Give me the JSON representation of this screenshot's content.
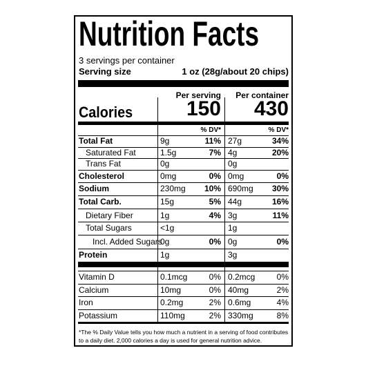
{
  "title": "Nutrition Facts",
  "servings": "3 servings per container",
  "serving_size": {
    "label": "Serving size",
    "value": "1 oz (28g/about 20 chips)"
  },
  "columns": [
    "Per serving",
    "Per container"
  ],
  "calories": {
    "label": "Calories",
    "per_serving": 150,
    "per_container": 430
  },
  "dv_header": [
    "% DV*",
    "% DV*"
  ],
  "nutrients": [
    {
      "label": "Total Fat",
      "per_serving": {
        "amount": "9g",
        "dv": "11%"
      },
      "per_container": {
        "amount": "27g",
        "dv": "34%"
      }
    },
    {
      "label": "Saturated Fat",
      "per_serving": {
        "amount": "1.5g",
        "dv": "7%"
      },
      "per_container": {
        "amount": "4g",
        "dv": "20%"
      }
    },
    {
      "label": "Trans Fat",
      "per_serving": {
        "amount": "0g"
      },
      "per_container": {
        "amount": "0g"
      }
    },
    {
      "label": "Cholesterol",
      "per_serving": {
        "amount": "0mg",
        "dv": "0%"
      },
      "per_container": {
        "amount": "0mg",
        "dv": "0%"
      }
    },
    {
      "label": "Sodium",
      "per_serving": {
        "amount": "230mg",
        "dv": "10%"
      },
      "per_container": {
        "amount": "690mg",
        "dv": "30%"
      }
    },
    {
      "label": "Total Carb.",
      "per_serving": {
        "amount": "15g",
        "dv": "5%"
      },
      "per_container": {
        "amount": "44g",
        "dv": "16%"
      }
    },
    {
      "label": "Dietary Fiber",
      "per_serving": {
        "amount": "1g",
        "dv": "4%"
      },
      "per_container": {
        "amount": "3g",
        "dv": "11%"
      }
    },
    {
      "label": "Total Sugars",
      "per_serving": {
        "amount": "<1g"
      },
      "per_container": {
        "amount": "1g"
      }
    },
    {
      "label": "Incl. Added Sugars",
      "per_serving": {
        "amount": "0g",
        "dv": "0%"
      },
      "per_container": {
        "amount": "0g",
        "dv": "0%"
      }
    },
    {
      "label": "Protein",
      "per_serving": {
        "amount": "1g"
      },
      "per_container": {
        "amount": "3g"
      }
    }
  ],
  "vitamins": [
    {
      "label": "Vitamin D",
      "per_serving": {
        "amount": "0.1mcg",
        "dv": "0%"
      },
      "per_container": {
        "amount": "0.2mcg",
        "dv": "0%"
      }
    },
    {
      "label": "Calcium",
      "per_serving": {
        "amount": "10mg",
        "dv": "0%"
      },
      "per_container": {
        "amount": "40mg",
        "dv": "2%"
      }
    },
    {
      "label": "Iron",
      "per_serving": {
        "amount": "0.2mg",
        "dv": "2%"
      },
      "per_container": {
        "amount": "0.6mg",
        "dv": "4%"
      }
    },
    {
      "label": "Potassium",
      "per_serving": {
        "amount": "110mg",
        "dv": "2%"
      },
      "per_container": {
        "amount": "330mg",
        "dv": "8%"
      }
    }
  ],
  "footnote": "*The % Daily Value tells you how much a nutrient in a serving of food contributes to a daily diet. 2,000 calories a day is used for general nutrition advice."
}
